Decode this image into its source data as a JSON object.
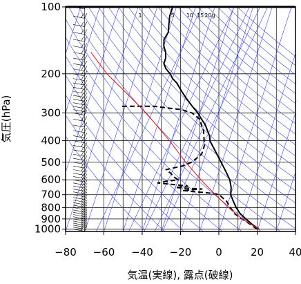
{
  "chart_data": {
    "type": "line",
    "title": "",
    "xlabel": "気温(実線), 露点(破線)",
    "ylabel": "気圧(hPa)",
    "xlim": [
      -80,
      40
    ],
    "ylim": [
      1025,
      100
    ],
    "y_scale": "log",
    "x_ticks": [
      "−80",
      "−60",
      "−40",
      "−20",
      "0",
      "20",
      "40"
    ],
    "x_tick_values": [
      -80,
      -60,
      -40,
      -20,
      0,
      20,
      40
    ],
    "y_ticks": [
      "100",
      "200",
      "300",
      "400",
      "500",
      "600",
      "700",
      "800",
      "900",
      "1000"
    ],
    "y_tick_values": [
      100,
      200,
      300,
      400,
      500,
      600,
      700,
      800,
      900,
      1000
    ],
    "skew_per_decade": 104,
    "mixing_ratio_labels": [
      "1",
      "5",
      "10",
      "15",
      "20g"
    ],
    "mixing_ratio_label_x": [
      -42,
      -25,
      -17,
      -11.5,
      -7.5
    ],
    "series": [
      {
        "style": "solid",
        "color": "#000000",
        "points": [
          [
            1000,
            20.5
          ],
          [
            950,
            16
          ],
          [
            900,
            12
          ],
          [
            850,
            8
          ],
          [
            800,
            5
          ],
          [
            750,
            2.5
          ],
          [
            700,
            0
          ],
          [
            650,
            -1
          ],
          [
            600,
            -3
          ],
          [
            550,
            -6.5
          ],
          [
            500,
            -10.5
          ],
          [
            450,
            -15
          ],
          [
            400,
            -20
          ],
          [
            380,
            -21
          ],
          [
            360,
            -23
          ],
          [
            340,
            -25
          ],
          [
            320,
            -28
          ],
          [
            300,
            -31
          ],
          [
            280,
            -35
          ],
          [
            260,
            -39
          ],
          [
            240,
            -43
          ],
          [
            220,
            -47
          ],
          [
            210,
            -50
          ],
          [
            200,
            -52
          ],
          [
            190,
            -55
          ],
          [
            180,
            -57
          ],
          [
            170,
            -57
          ],
          [
            160,
            -58
          ],
          [
            150,
            -60
          ],
          [
            140,
            -61
          ],
          [
            130,
            -60
          ],
          [
            120,
            -61
          ],
          [
            110,
            -62
          ],
          [
            100,
            -62
          ]
        ]
      },
      {
        "style": "dashed",
        "color": "#000000",
        "points": [
          [
            1000,
            19.5
          ],
          [
            950,
            15
          ],
          [
            900,
            10
          ],
          [
            850,
            5
          ],
          [
            800,
            2
          ],
          [
            750,
            -1
          ],
          [
            720,
            -4
          ],
          [
            700,
            -6
          ],
          [
            690,
            -10
          ],
          [
            680,
            -18
          ],
          [
            670,
            -26
          ],
          [
            660,
            -16
          ],
          [
            650,
            -30
          ],
          [
            640,
            -24
          ],
          [
            620,
            -40
          ],
          [
            610,
            -36
          ],
          [
            600,
            -30
          ],
          [
            580,
            -33
          ],
          [
            560,
            -35
          ],
          [
            540,
            -38
          ],
          [
            520,
            -30
          ],
          [
            500,
            -26
          ],
          [
            480,
            -24
          ],
          [
            460,
            -22
          ],
          [
            440,
            -22
          ],
          [
            420,
            -22
          ],
          [
            400,
            -23
          ],
          [
            380,
            -24
          ],
          [
            360,
            -25
          ],
          [
            340,
            -27
          ],
          [
            320,
            -29
          ],
          [
            300,
            -34
          ],
          [
            290,
            -40
          ],
          [
            280,
            -55
          ],
          [
            280,
            -72
          ]
        ]
      },
      {
        "style": "solid",
        "color": "#dd2020",
        "points": [
          [
            1000,
            20.5
          ],
          [
            900,
            10
          ],
          [
            800,
            1
          ],
          [
            700,
            -8
          ],
          [
            600,
            -18
          ],
          [
            500,
            -29
          ],
          [
            400,
            -41
          ],
          [
            300,
            -58
          ],
          [
            250,
            -70
          ],
          [
            200,
            -85
          ],
          [
            160,
            -97
          ]
        ]
      }
    ],
    "wind_profile_pressures": [
      1000,
      980,
      960,
      940,
      920,
      900,
      880,
      860,
      840,
      820,
      800,
      780,
      760,
      740,
      720,
      700,
      680,
      660,
      640,
      620,
      600,
      580,
      560,
      540,
      520,
      500,
      480,
      460,
      440,
      420,
      400,
      380,
      360,
      340,
      320,
      300,
      290,
      280,
      270,
      260,
      250,
      240,
      230,
      220,
      210,
      200,
      190,
      180,
      170,
      160,
      150,
      140,
      130,
      120,
      110,
      100
    ],
    "grid": true,
    "legend": "none"
  }
}
